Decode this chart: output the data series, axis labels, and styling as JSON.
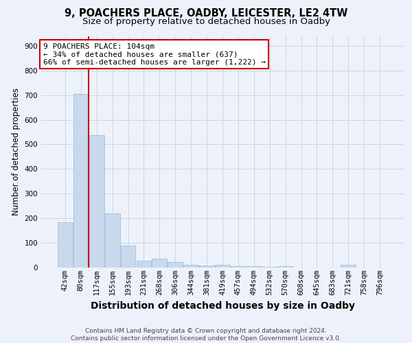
{
  "title1": "9, POACHERS PLACE, OADBY, LEICESTER, LE2 4TW",
  "title2": "Size of property relative to detached houses in Oadby",
  "xlabel": "Distribution of detached houses by size in Oadby",
  "ylabel": "Number of detached properties",
  "categories": [
    "42sqm",
    "80sqm",
    "117sqm",
    "155sqm",
    "193sqm",
    "231sqm",
    "268sqm",
    "306sqm",
    "344sqm",
    "381sqm",
    "419sqm",
    "457sqm",
    "494sqm",
    "532sqm",
    "570sqm",
    "608sqm",
    "645sqm",
    "683sqm",
    "721sqm",
    "758sqm",
    "796sqm"
  ],
  "values": [
    185,
    706,
    537,
    219,
    88,
    28,
    35,
    22,
    11,
    8,
    10,
    6,
    5,
    4,
    5,
    0,
    0,
    0,
    10,
    0,
    0
  ],
  "bar_color": "#c8d9ee",
  "bar_edge_color": "#9ab5d5",
  "grid_color": "#c8d4e8",
  "background_color": "#edf2fa",
  "vline_color": "#cc0000",
  "vline_x_index": 1.5,
  "annotation_text": "9 POACHERS PLACE: 104sqm\n← 34% of detached houses are smaller (637)\n66% of semi-detached houses are larger (1,222) →",
  "annotation_box_facecolor": "#ffffff",
  "annotation_box_edgecolor": "#cc0000",
  "ylim": [
    0,
    940
  ],
  "yticks": [
    0,
    100,
    200,
    300,
    400,
    500,
    600,
    700,
    800,
    900
  ],
  "title1_fontsize": 10.5,
  "title2_fontsize": 9.5,
  "xlabel_fontsize": 10,
  "ylabel_fontsize": 8.5,
  "tick_fontsize": 7.5,
  "annot_fontsize": 8,
  "footer_fontsize": 6.5,
  "footer": "Contains HM Land Registry data © Crown copyright and database right 2024.\nContains public sector information licensed under the Open Government Licence v3.0."
}
